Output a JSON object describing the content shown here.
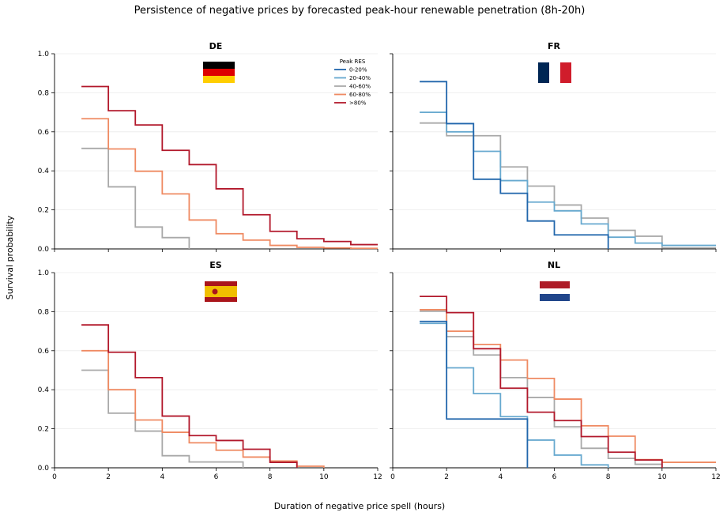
{
  "title": "Persistence of negative prices by forecasted peak-hour renewable penetration (8h-20h)",
  "xlabel": "Duration of negative price spell (hours)",
  "ylabel": "Survival probability",
  "legend_title": "Peak RES",
  "colors": {
    "0-20%": "#2166ac",
    "20-40%": "#67a9cf",
    "40-60%": "#a9a9a9",
    "60-80%": "#ef8a62",
    ">80%": "#b2182b"
  },
  "chart_data": [
    {
      "type": "line",
      "step": "post",
      "panel": "DE",
      "title": "DE",
      "flag": "Germany",
      "xlim": [
        0,
        12
      ],
      "ylim": [
        0,
        1
      ],
      "xticks": [
        "0",
        "2",
        "4",
        "6",
        "8",
        "10",
        "12"
      ],
      "yticks": [
        "0.0",
        "0.2",
        "0.4",
        "0.6",
        "0.8",
        "1.0"
      ],
      "series": [
        {
          "name": "40-60%",
          "x": [
            1,
            2,
            3,
            4,
            5
          ],
          "y": [
            0.515,
            0.318,
            0.112,
            0.058,
            0.0
          ]
        },
        {
          "name": "60-80%",
          "x": [
            1,
            2,
            3,
            4,
            5,
            6,
            7,
            8,
            9,
            10,
            11,
            12
          ],
          "y": [
            0.667,
            0.512,
            0.398,
            0.282,
            0.148,
            0.078,
            0.045,
            0.018,
            0.008,
            0.005,
            0.003,
            0.003
          ]
        },
        {
          "name": ">80%",
          "x": [
            1,
            2,
            3,
            4,
            5,
            6,
            7,
            8,
            9,
            10,
            11,
            12
          ],
          "y": [
            0.832,
            0.708,
            0.635,
            0.505,
            0.432,
            0.308,
            0.175,
            0.09,
            0.052,
            0.038,
            0.022,
            0.022
          ]
        }
      ],
      "legend": [
        "0-20%",
        "20-40%",
        "40-60%",
        "60-80%",
        ">80%"
      ]
    },
    {
      "type": "line",
      "step": "post",
      "panel": "FR",
      "title": "FR",
      "flag": "France",
      "xlim": [
        0,
        12
      ],
      "ylim": [
        0,
        1
      ],
      "xticks": [
        "0",
        "2",
        "4",
        "6",
        "8",
        "10",
        "12"
      ],
      "yticks": [
        "0.0",
        "0.2",
        "0.4",
        "0.6",
        "0.8",
        "1.0"
      ],
      "series": [
        {
          "name": "40-60%",
          "x": [
            1,
            2,
            3,
            4,
            5,
            6,
            7,
            8,
            9,
            10,
            11,
            12
          ],
          "y": [
            0.645,
            0.58,
            0.58,
            0.42,
            0.322,
            0.225,
            0.158,
            0.095,
            0.065,
            0.005,
            0.005,
            0.005
          ]
        },
        {
          "name": "20-40%",
          "x": [
            1,
            2,
            3,
            4,
            5,
            6,
            7,
            8,
            9,
            10,
            11,
            12
          ],
          "y": [
            0.7,
            0.6,
            0.5,
            0.35,
            0.24,
            0.195,
            0.128,
            0.06,
            0.03,
            0.018,
            0.018,
            0.018
          ]
        },
        {
          "name": "0-20%",
          "x": [
            1,
            2,
            3,
            4,
            5,
            6,
            7,
            8
          ],
          "y": [
            0.857,
            0.642,
            0.357,
            0.285,
            0.143,
            0.072,
            0.072,
            0.0
          ]
        }
      ]
    },
    {
      "type": "line",
      "step": "post",
      "panel": "ES",
      "title": "ES",
      "flag": "Spain",
      "xlim": [
        0,
        12
      ],
      "ylim": [
        0,
        1
      ],
      "xticks": [
        "0",
        "2",
        "4",
        "6",
        "8",
        "10",
        "12"
      ],
      "yticks": [
        "0.0",
        "0.2",
        "0.4",
        "0.6",
        "0.8",
        "1.0"
      ],
      "series": [
        {
          "name": "40-60%",
          "x": [
            1,
            2,
            3,
            4,
            5,
            6,
            7
          ],
          "y": [
            0.5,
            0.28,
            0.188,
            0.062,
            0.03,
            0.03,
            0.0
          ]
        },
        {
          "name": "60-80%",
          "x": [
            1,
            2,
            3,
            4,
            5,
            6,
            7,
            8,
            9,
            10
          ],
          "y": [
            0.6,
            0.4,
            0.245,
            0.182,
            0.128,
            0.09,
            0.055,
            0.035,
            0.008,
            0.0
          ]
        },
        {
          "name": ">80%",
          "x": [
            1,
            2,
            3,
            4,
            5,
            6,
            7,
            8,
            9
          ],
          "y": [
            0.732,
            0.592,
            0.462,
            0.265,
            0.165,
            0.14,
            0.095,
            0.028,
            0.0
          ]
        }
      ]
    },
    {
      "type": "line",
      "step": "post",
      "panel": "NL",
      "title": "NL",
      "flag": "Netherlands",
      "xlim": [
        0,
        12
      ],
      "ylim": [
        0,
        1
      ],
      "xticks": [
        "0",
        "2",
        "4",
        "6",
        "8",
        "10",
        "12"
      ],
      "yticks": [
        "0.0",
        "0.2",
        "0.4",
        "0.6",
        "0.8",
        "1.0"
      ],
      "series": [
        {
          "name": "40-60%",
          "x": [
            1,
            2,
            3,
            4,
            5,
            6,
            7,
            8,
            9,
            10
          ],
          "y": [
            0.802,
            0.672,
            0.578,
            0.462,
            0.36,
            0.21,
            0.1,
            0.048,
            0.018,
            0.0
          ]
        },
        {
          "name": "60-80%",
          "x": [
            1,
            2,
            3,
            4,
            5,
            6,
            7,
            8,
            9,
            10,
            11,
            12
          ],
          "y": [
            0.81,
            0.7,
            0.632,
            0.552,
            0.458,
            0.352,
            0.215,
            0.162,
            0.042,
            0.028,
            0.028,
            0.028
          ]
        },
        {
          "name": "20-40%",
          "x": [
            1,
            2,
            3,
            4,
            5,
            6,
            7,
            8
          ],
          "y": [
            0.74,
            0.512,
            0.38,
            0.262,
            0.142,
            0.065,
            0.015,
            0.0
          ]
        },
        {
          "name": "0-20%",
          "x": [
            1,
            2,
            3,
            4,
            5
          ],
          "y": [
            0.75,
            0.25,
            0.25,
            0.25,
            0.0
          ]
        },
        {
          "name": ">80%",
          "x": [
            1,
            2,
            3,
            4,
            5,
            6,
            7,
            8,
            9,
            10
          ],
          "y": [
            0.878,
            0.795,
            0.61,
            0.408,
            0.285,
            0.242,
            0.16,
            0.08,
            0.04,
            0.0
          ]
        }
      ]
    }
  ]
}
